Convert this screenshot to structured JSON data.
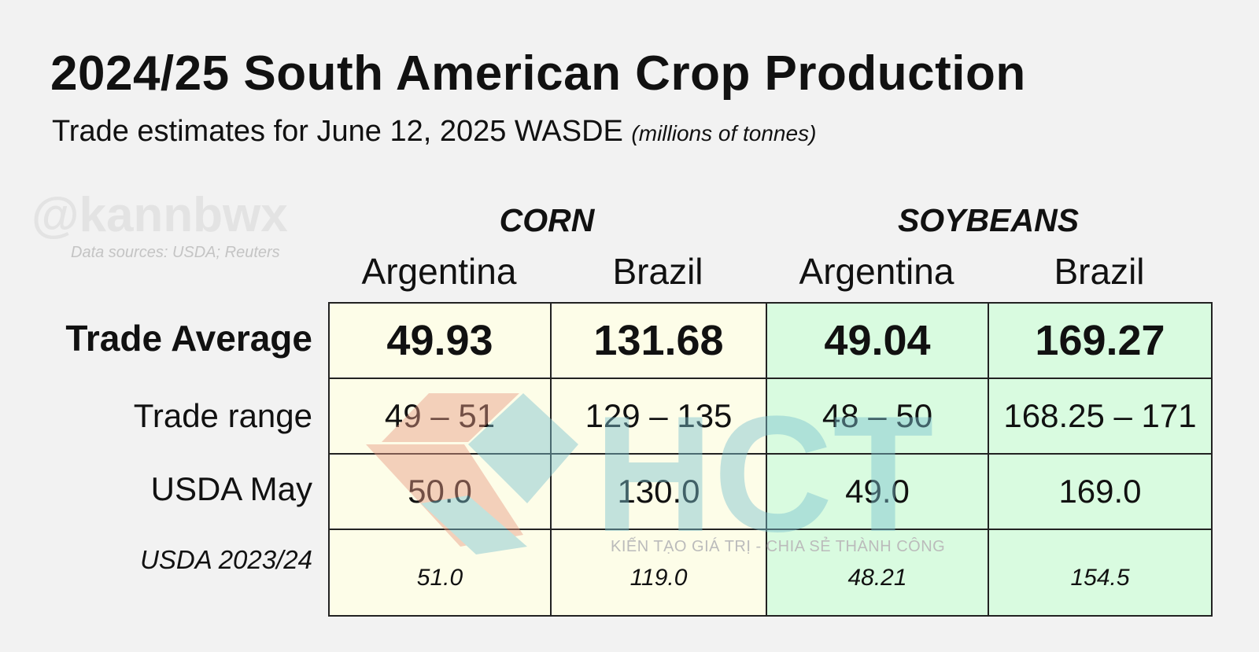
{
  "title": "2024/25 South American Crop Production",
  "subtitle": "Trade estimates for June 12, 2025 WASDE",
  "unit_note": "(millions of tonnes)",
  "watermark": "@kannbwx",
  "sources": "Data sources: USDA; Reuters",
  "logo_tagline": "KIẾN TẠO GIÁ TRỊ - CHIA SẺ THÀNH CÔNG",
  "colors": {
    "corn_fill": "#fdfde8",
    "soybean_fill": "#d9fbe0",
    "logo_red": "#e89a84",
    "logo_teal": "#7cc2cf"
  },
  "chart_data": {
    "type": "table",
    "groups": [
      {
        "name": "CORN",
        "columns": [
          "Argentina",
          "Brazil"
        ]
      },
      {
        "name": "SOYBEANS",
        "columns": [
          "Argentina",
          "Brazil"
        ]
      }
    ],
    "rows": [
      {
        "label": "Trade Average",
        "values": [
          "49.93",
          "131.68",
          "49.04",
          "169.27"
        ]
      },
      {
        "label": "Trade range",
        "values": [
          "49 – 51",
          "129 – 135",
          "48 – 50",
          "168.25 – 171"
        ]
      },
      {
        "label": "USDA May",
        "values": [
          "50.0",
          "130.0",
          "49.0",
          "169.0"
        ]
      },
      {
        "label": "USDA 2023/24",
        "values": [
          "51.0",
          "119.0",
          "48.21",
          "154.5"
        ]
      }
    ]
  }
}
